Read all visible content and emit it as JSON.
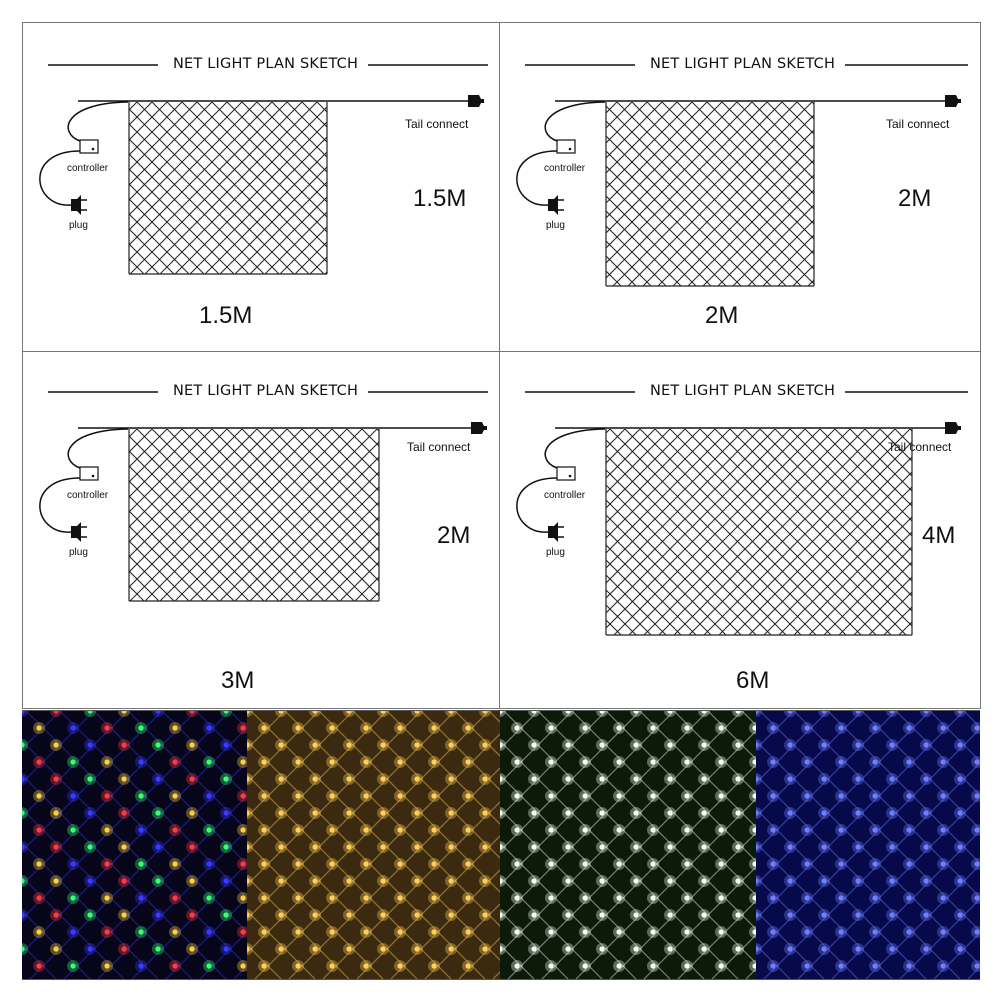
{
  "sketches": [
    {
      "title": "NET LIGHT PLAN SKETCH",
      "tail_label": "Tail connect",
      "controller_label": "controller",
      "plug_label": "plug",
      "height_label": "1.5M",
      "width_label": "1.5M"
    },
    {
      "title": "NET LIGHT PLAN SKETCH",
      "tail_label": "Tail connect",
      "controller_label": "controller",
      "plug_label": "plug",
      "height_label": "2M",
      "width_label": "2M"
    },
    {
      "title": "NET LIGHT PLAN SKETCH",
      "tail_label": "Tail connect",
      "controller_label": "controller",
      "plug_label": "plug",
      "height_label": "2M",
      "width_label": "3M"
    },
    {
      "title": "NET LIGHT PLAN SKETCH",
      "tail_label": "Tail connect",
      "controller_label": "controller",
      "plug_label": "plug",
      "height_label": "4M",
      "width_label": "6M"
    }
  ],
  "photos": [
    {
      "name": "multicolor-net-photo",
      "colors": [
        "#3a3aff",
        "#ff3b3b",
        "#3bff6a",
        "#ffd23b"
      ],
      "background": "#06051a"
    },
    {
      "name": "warm-white-net-photo",
      "colors": [
        "#ffcf5a"
      ],
      "background": "#3b2a10"
    },
    {
      "name": "cool-white-net-photo",
      "colors": [
        "#f4fff0"
      ],
      "background": "#0d1a0a"
    },
    {
      "name": "blue-net-photo",
      "colors": [
        "#6f7dff"
      ],
      "background": "#070a4a"
    }
  ]
}
